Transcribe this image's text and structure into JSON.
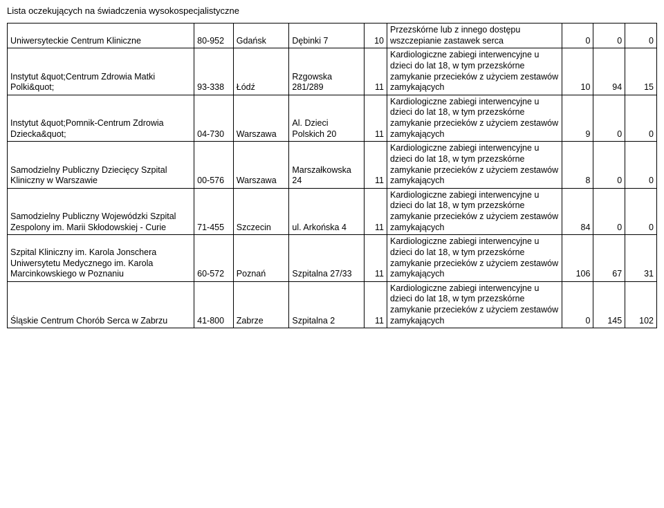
{
  "title": "Lista oczekujących na świadczenia wysokospecjalistyczne",
  "procedures": {
    "p1": "Przezskórne lub z innego dostępu wszczepianie zastawek serca",
    "p2": "Kardiologiczne zabiegi interwencyjne u dzieci do lat 18, w tym przezskórne zamykanie przecieków z użyciem zestawów zamykających"
  },
  "rows": [
    {
      "name": "Uniwersyteckie Centrum Kliniczne",
      "postal": "80-952",
      "city": "Gdańsk",
      "addr": "Dębinki 7",
      "code": "10",
      "proc_key": "p1",
      "a": "0",
      "b": "0",
      "c": "0"
    },
    {
      "name": "Instytut &quot;Centrum Zdrowia Matki Polki&quot;",
      "postal": "93-338",
      "city": "Łódź",
      "addr": "Rzgowska 281/289",
      "code": "11",
      "proc_key": "p2",
      "a": "10",
      "b": "94",
      "c": "15"
    },
    {
      "name": "Instytut &quot;Pomnik-Centrum Zdrowia Dziecka&quot;",
      "postal": "04-730",
      "city": "Warszawa",
      "addr": "Al. Dzieci Polskich 20",
      "code": "11",
      "proc_key": "p2",
      "a": "9",
      "b": "0",
      "c": "0"
    },
    {
      "name": "Samodzielny Publiczny Dziecięcy Szpital Kliniczny w Warszawie",
      "postal": "00-576",
      "city": "Warszawa",
      "addr": "Marszałkowska 24",
      "code": "11",
      "proc_key": "p2",
      "a": "8",
      "b": "0",
      "c": "0"
    },
    {
      "name": "Samodzielny Publiczny Wojewódzki Szpital Zespolony im. Marii Skłodowskiej - Curie",
      "postal": "71-455",
      "city": "Szczecin",
      "addr": "ul. Arkońska 4",
      "code": "11",
      "proc_key": "p2",
      "a": "84",
      "b": "0",
      "c": "0"
    },
    {
      "name": "Szpital Kliniczny im. Karola Jonschera Uniwersytetu Medycznego im. Karola Marcinkowskiego w Poznaniu",
      "postal": "60-572",
      "city": "Poznań",
      "addr": "Szpitalna 27/33",
      "code": "11",
      "proc_key": "p2",
      "a": "106",
      "b": "67",
      "c": "31"
    },
    {
      "name": "Śląskie Centrum Chorób Serca w Zabrzu",
      "postal": "41-800",
      "city": "Zabrze",
      "addr": "Szpitalna 2",
      "code": "11",
      "proc_key": "p2",
      "a": "0",
      "b": "145",
      "c": "102"
    }
  ]
}
